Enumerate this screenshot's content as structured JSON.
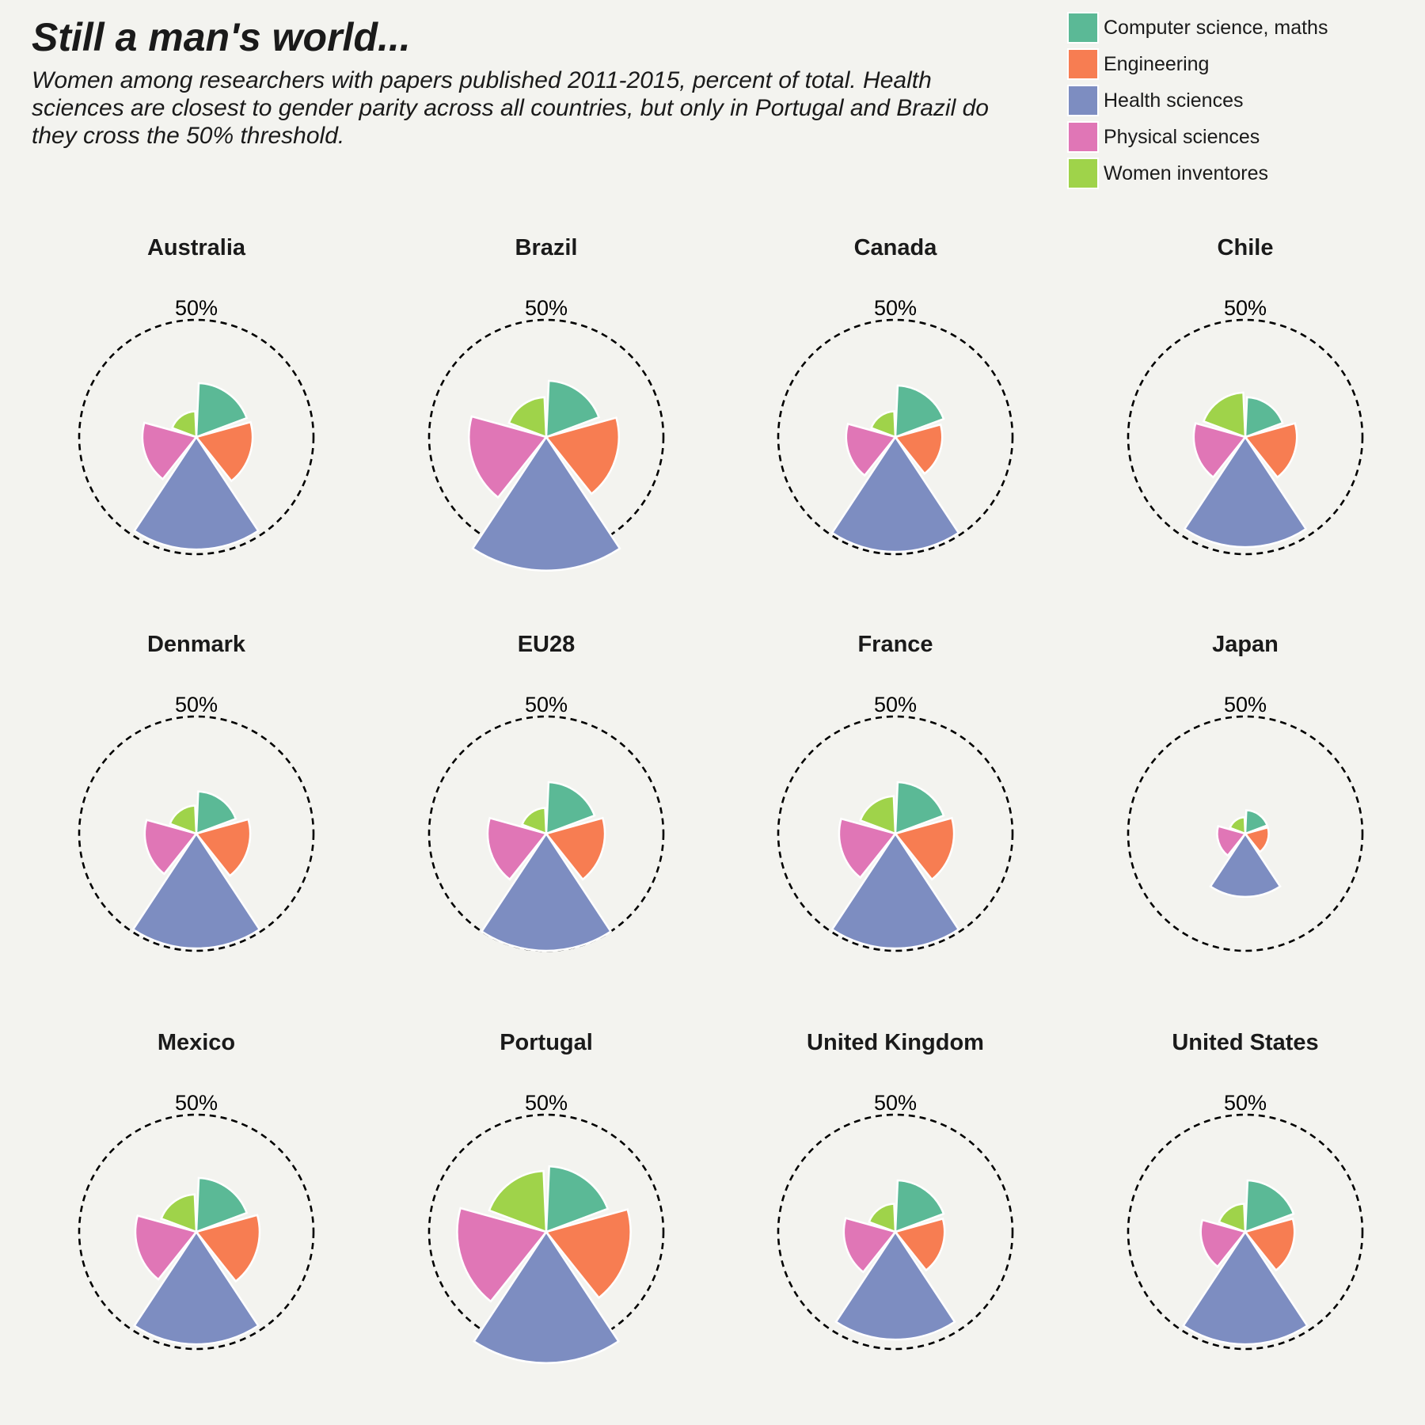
{
  "header": {
    "title": "Still a man's world...",
    "subtitle": "Women among researchers with papers published 2011-2015, percent of total. Health sciences are closest to gender parity across all countries, but only in Portugal and Brazil do they cross the 50% threshold."
  },
  "legend": {
    "placement": "top-right",
    "items": [
      {
        "label": "Computer science, maths",
        "color": "#5bb996"
      },
      {
        "label": "Engineering",
        "color": "#f77d52"
      },
      {
        "label": "Health sciences",
        "color": "#7d8dc1"
      },
      {
        "label": "Physical sciences",
        "color": "#e076b6"
      },
      {
        "label": "Women inventores",
        "color": "#9fd34a"
      }
    ]
  },
  "chart_data": {
    "type": "polar-bar",
    "reference_ring_label": "50%",
    "reference_ring_value": 50,
    "categories": [
      "Computer science, maths",
      "Engineering",
      "Health sciences",
      "Physical sciences",
      "Women inventores"
    ],
    "panels": [
      {
        "name": "Australia",
        "values": [
          23,
          24,
          48,
          23,
          11
        ]
      },
      {
        "name": "Brazil",
        "values": [
          24,
          31,
          57,
          33,
          17
        ]
      },
      {
        "name": "Canada",
        "values": [
          22,
          20,
          49,
          21,
          11
        ]
      },
      {
        "name": "Chile",
        "values": [
          17,
          22,
          47,
          22,
          19
        ]
      },
      {
        "name": "Denmark",
        "values": [
          18,
          23,
          49,
          22,
          12
        ]
      },
      {
        "name": "EU28",
        "values": [
          22,
          25,
          50,
          25,
          11
        ]
      },
      {
        "name": "France",
        "values": [
          22,
          25,
          49,
          24,
          16
        ]
      },
      {
        "name": "Japan",
        "values": [
          10,
          10,
          27,
          12,
          7
        ]
      },
      {
        "name": "Mexico",
        "values": [
          23,
          27,
          48,
          26,
          16
        ]
      },
      {
        "name": "Portugal",
        "values": [
          28,
          36,
          56,
          38,
          26
        ]
      },
      {
        "name": "United Kingdom",
        "values": [
          22,
          21,
          46,
          22,
          12
        ]
      },
      {
        "name": "United States",
        "values": [
          22,
          21,
          48,
          19,
          12
        ]
      }
    ]
  }
}
